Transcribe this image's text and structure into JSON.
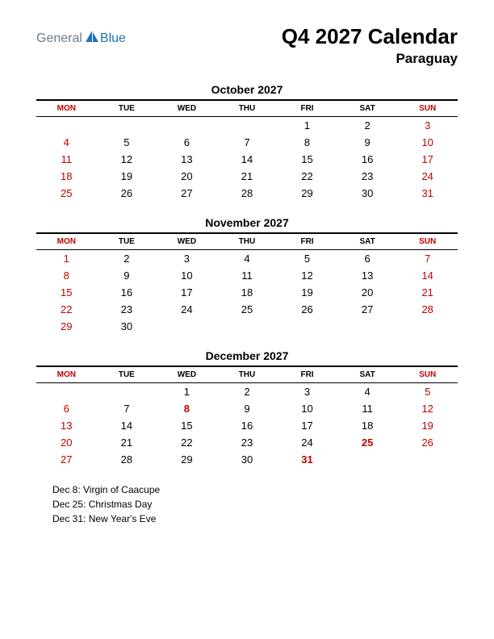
{
  "logo": {
    "text1": "General",
    "text2": "Blue"
  },
  "title": "Q4 2027 Calendar",
  "subtitle": "Paraguay",
  "day_headers": [
    "MON",
    "TUE",
    "WED",
    "THU",
    "FRI",
    "SAT",
    "SUN"
  ],
  "header_colors": {
    "mon": "#c00000",
    "sun": "#c00000",
    "other": "#000000"
  },
  "cell_fontsize": 13,
  "header_fontsize": 10,
  "months": [
    {
      "name": "October 2027",
      "weeks": [
        [
          "",
          "",
          "",
          "",
          "1",
          "2",
          "3"
        ],
        [
          "4",
          "5",
          "6",
          "7",
          "8",
          "9",
          "10"
        ],
        [
          "11",
          "12",
          "13",
          "14",
          "15",
          "16",
          "17"
        ],
        [
          "18",
          "19",
          "20",
          "21",
          "22",
          "23",
          "24"
        ],
        [
          "25",
          "26",
          "27",
          "28",
          "29",
          "30",
          "31"
        ]
      ],
      "holidays": []
    },
    {
      "name": "November 2027",
      "weeks": [
        [
          "1",
          "2",
          "3",
          "4",
          "5",
          "6",
          "7"
        ],
        [
          "8",
          "9",
          "10",
          "11",
          "12",
          "13",
          "14"
        ],
        [
          "15",
          "16",
          "17",
          "18",
          "19",
          "20",
          "21"
        ],
        [
          "22",
          "23",
          "24",
          "25",
          "26",
          "27",
          "28"
        ],
        [
          "29",
          "30",
          "",
          "",
          "",
          "",
          ""
        ]
      ],
      "holidays": []
    },
    {
      "name": "December 2027",
      "weeks": [
        [
          "",
          "",
          "1",
          "2",
          "3",
          "4",
          "5"
        ],
        [
          "6",
          "7",
          "8",
          "9",
          "10",
          "11",
          "12"
        ],
        [
          "13",
          "14",
          "15",
          "16",
          "17",
          "18",
          "19"
        ],
        [
          "20",
          "21",
          "22",
          "23",
          "24",
          "25",
          "26"
        ],
        [
          "27",
          "28",
          "29",
          "30",
          "31",
          "",
          ""
        ]
      ],
      "holidays": [
        "8",
        "25",
        "31"
      ]
    }
  ],
  "notes": [
    "Dec 8: Virgin of Caacupe",
    "Dec 25: Christmas Day",
    "Dec 31: New Year's Eve"
  ],
  "colors": {
    "holiday": "#c00000",
    "text": "#000000",
    "background": "#ffffff",
    "logo_gray": "#6b7a8a",
    "logo_blue": "#1e73be"
  }
}
